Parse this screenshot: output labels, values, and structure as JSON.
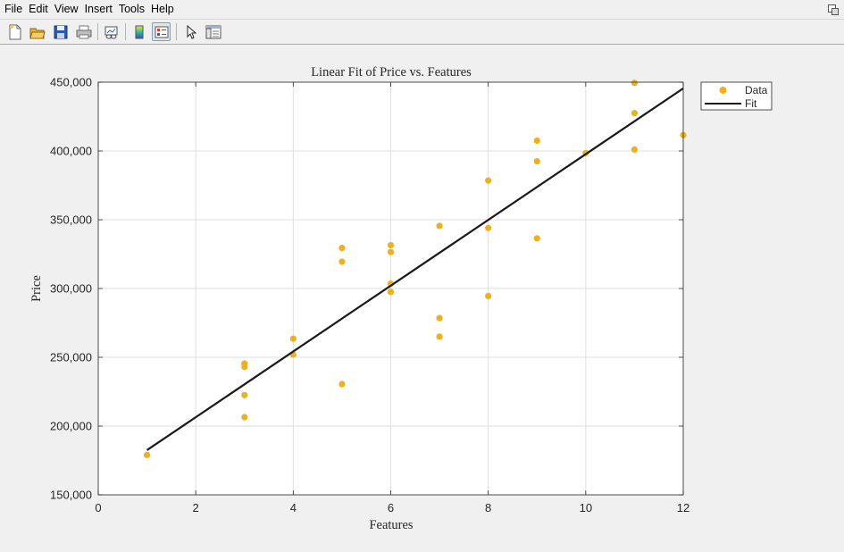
{
  "menu": [
    "File",
    "Edit",
    "View",
    "Insert",
    "Tools",
    "Help"
  ],
  "toolbar_icons": [
    "new-figure-icon",
    "open-file-icon",
    "save-icon",
    "print-icon",
    "link-plot-icon",
    "insert-colorbar-icon",
    "insert-legend-icon",
    "edit-plot-icon",
    "property-inspector-icon"
  ],
  "chart_data": {
    "type": "scatter",
    "title": "Linear Fit of Price vs. Features",
    "xlabel": "Features",
    "ylabel": "Price",
    "xlim": [
      0,
      12
    ],
    "ylim": [
      150000,
      450000
    ],
    "xticks": [
      0,
      2,
      4,
      6,
      8,
      10,
      12
    ],
    "yticks": [
      150000,
      200000,
      250000,
      300000,
      350000,
      400000,
      450000
    ],
    "ytick_labels": [
      "150,000",
      "200,000",
      "250,000",
      "300,000",
      "350,000",
      "400,000",
      "450,000"
    ],
    "grid": true,
    "legend_position": "outside-top-right",
    "series": [
      {
        "name": "Data",
        "kind": "markers",
        "color": "#EDB120",
        "points": [
          [
            1,
            179000
          ],
          [
            3,
            206500
          ],
          [
            3,
            222500
          ],
          [
            3,
            243000
          ],
          [
            3,
            245500
          ],
          [
            4,
            252000
          ],
          [
            4,
            263500
          ],
          [
            5,
            230500
          ],
          [
            5,
            319500
          ],
          [
            5,
            329500
          ],
          [
            6,
            297500
          ],
          [
            6,
            303500
          ],
          [
            6,
            326500
          ],
          [
            6,
            331500
          ],
          [
            7,
            265000
          ],
          [
            7,
            278500
          ],
          [
            7,
            345500
          ],
          [
            8,
            294500
          ],
          [
            8,
            344000
          ],
          [
            8,
            378500
          ],
          [
            9,
            336500
          ],
          [
            9,
            392500
          ],
          [
            9,
            407500
          ],
          [
            10,
            398500
          ],
          [
            11,
            401000
          ],
          [
            11,
            427500
          ],
          [
            11,
            449500
          ],
          [
            12,
            411500
          ]
        ]
      },
      {
        "name": "Fit",
        "kind": "line",
        "color": "#1a1a1a",
        "points": [
          [
            1,
            182500
          ],
          [
            12,
            445500
          ]
        ]
      }
    ]
  }
}
